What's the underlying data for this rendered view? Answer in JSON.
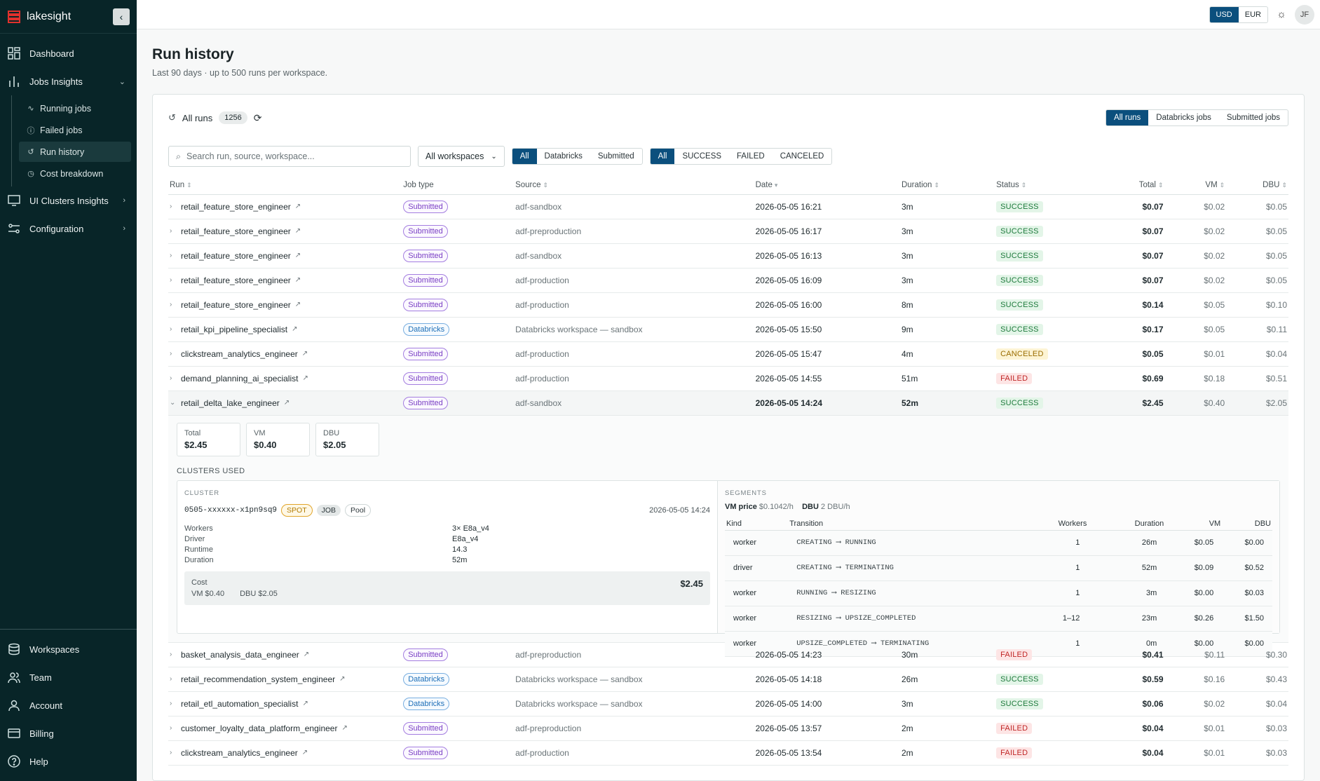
{
  "app": {
    "name": "lakesight",
    "collapse_icon": "chevron-left-icon"
  },
  "sidebar": {
    "items": [
      {
        "label": "Dashboard",
        "icon": "dashboard-icon"
      },
      {
        "label": "Jobs Insights",
        "icon": "bar-chart-icon",
        "expanded": true
      },
      {
        "label": "UI Clusters Insights",
        "icon": "monitor-icon"
      },
      {
        "label": "Configuration",
        "icon": "sliders-icon"
      }
    ],
    "sub_items": [
      {
        "label": "Running jobs",
        "icon": "activity-icon"
      },
      {
        "label": "Failed jobs",
        "icon": "alert-circle-icon"
      },
      {
        "label": "Run history",
        "icon": "history-icon",
        "active": true
      },
      {
        "label": "Cost breakdown",
        "icon": "clock-icon"
      }
    ],
    "bottom_items": [
      {
        "label": "Workspaces",
        "icon": "database-icon"
      },
      {
        "label": "Team",
        "icon": "users-icon"
      },
      {
        "label": "Account",
        "icon": "user-icon"
      },
      {
        "label": "Billing",
        "icon": "credit-card-icon"
      },
      {
        "label": "Help",
        "icon": "help-circle-icon"
      }
    ]
  },
  "topbar": {
    "currencies": [
      "USD",
      "EUR"
    ],
    "active_currency": "USD",
    "avatar_initials": "JF"
  },
  "page": {
    "title": "Run history",
    "subtitle": "Last 90 days · up to 500 runs per workspace."
  },
  "card": {
    "title": "All runs",
    "count": "1256",
    "view_tabs": [
      "All runs",
      "Databricks jobs",
      "Submitted jobs"
    ],
    "active_view": "All runs",
    "search_placeholder": "Search run, source, workspace...",
    "workspace_select": "All workspaces",
    "type_filter": [
      "All",
      "Databricks",
      "Submitted"
    ],
    "status_filter": [
      "All",
      "SUCCESS",
      "FAILED",
      "CANCELED"
    ]
  },
  "table": {
    "columns": [
      "Run",
      "Job type",
      "Source",
      "Date",
      "Duration",
      "Status",
      "Total",
      "VM",
      "DBU"
    ],
    "rows_before": [
      {
        "run": "retail_feature_store_engineer",
        "type": "Submitted",
        "source": "adf-sandbox",
        "date": "2026-05-05 16:21",
        "duration": "3m",
        "status": "SUCCESS",
        "total": "$0.07",
        "vm": "$0.02",
        "dbu": "$0.05"
      },
      {
        "run": "retail_feature_store_engineer",
        "type": "Submitted",
        "source": "adf-preproduction",
        "date": "2026-05-05 16:17",
        "duration": "3m",
        "status": "SUCCESS",
        "total": "$0.07",
        "vm": "$0.02",
        "dbu": "$0.05"
      },
      {
        "run": "retail_feature_store_engineer",
        "type": "Submitted",
        "source": "adf-sandbox",
        "date": "2026-05-05 16:13",
        "duration": "3m",
        "status": "SUCCESS",
        "total": "$0.07",
        "vm": "$0.02",
        "dbu": "$0.05"
      },
      {
        "run": "retail_feature_store_engineer",
        "type": "Submitted",
        "source": "adf-production",
        "date": "2026-05-05 16:09",
        "duration": "3m",
        "status": "SUCCESS",
        "total": "$0.07",
        "vm": "$0.02",
        "dbu": "$0.05"
      },
      {
        "run": "retail_feature_store_engineer",
        "type": "Submitted",
        "source": "adf-production",
        "date": "2026-05-05 16:00",
        "duration": "8m",
        "status": "SUCCESS",
        "total": "$0.14",
        "vm": "$0.05",
        "dbu": "$0.10"
      },
      {
        "run": "retail_kpi_pipeline_specialist",
        "type": "Databricks",
        "source": "Databricks workspace — sandbox",
        "date": "2026-05-05 15:50",
        "duration": "9m",
        "status": "SUCCESS",
        "total": "$0.17",
        "vm": "$0.05",
        "dbu": "$0.11"
      },
      {
        "run": "clickstream_analytics_engineer",
        "type": "Submitted",
        "source": "adf-production",
        "date": "2026-05-05 15:47",
        "duration": "4m",
        "status": "CANCELED",
        "total": "$0.05",
        "vm": "$0.01",
        "dbu": "$0.04"
      },
      {
        "run": "demand_planning_ai_specialist",
        "type": "Submitted",
        "source": "adf-production",
        "date": "2026-05-05 14:55",
        "duration": "51m",
        "status": "FAILED",
        "total": "$0.69",
        "vm": "$0.18",
        "dbu": "$0.51"
      }
    ],
    "expanded_row": {
      "run": "retail_delta_lake_engineer",
      "type": "Submitted",
      "source": "adf-sandbox",
      "date": "2026-05-05 14:24",
      "duration": "52m",
      "status": "SUCCESS",
      "total": "$2.45",
      "vm": "$0.40",
      "dbu": "$2.05"
    },
    "rows_after": [
      {
        "run": "basket_analysis_data_engineer",
        "type": "Submitted",
        "source": "adf-preproduction",
        "date": "2026-05-05 14:23",
        "duration": "30m",
        "status": "FAILED",
        "total": "$0.41",
        "vm": "$0.11",
        "dbu": "$0.30"
      },
      {
        "run": "retail_recommendation_system_engineer",
        "type": "Databricks",
        "source": "Databricks workspace — sandbox",
        "date": "2026-05-05 14:18",
        "duration": "26m",
        "status": "SUCCESS",
        "total": "$0.59",
        "vm": "$0.16",
        "dbu": "$0.43"
      },
      {
        "run": "retail_etl_automation_specialist",
        "type": "Databricks",
        "source": "Databricks workspace — sandbox",
        "date": "2026-05-05 14:00",
        "duration": "3m",
        "status": "SUCCESS",
        "total": "$0.06",
        "vm": "$0.02",
        "dbu": "$0.04"
      },
      {
        "run": "customer_loyalty_data_platform_engineer",
        "type": "Submitted",
        "source": "adf-preproduction",
        "date": "2026-05-05 13:57",
        "duration": "2m",
        "status": "FAILED",
        "total": "$0.04",
        "vm": "$0.01",
        "dbu": "$0.03"
      },
      {
        "run": "clickstream_analytics_engineer",
        "type": "Submitted",
        "source": "adf-production",
        "date": "2026-05-05 13:54",
        "duration": "2m",
        "status": "FAILED",
        "total": "$0.04",
        "vm": "$0.01",
        "dbu": "$0.03"
      }
    ]
  },
  "detail": {
    "stats": [
      {
        "label": "Total",
        "value": "$2.45"
      },
      {
        "label": "VM",
        "value": "$0.40"
      },
      {
        "label": "DBU",
        "value": "$2.05"
      }
    ],
    "clusters_title": "CLUSTERS USED",
    "cluster": {
      "section_label": "CLUSTER",
      "id": "0505-xxxxxx-x1pn9sq9",
      "chips": [
        "SPOT",
        "JOB",
        "Pool"
      ],
      "started": "2026-05-05 14:24",
      "fields": [
        {
          "k": "Workers",
          "v": "3× E8a_v4"
        },
        {
          "k": "Driver",
          "v": "E8a_v4"
        },
        {
          "k": "Runtime",
          "v": "14.3"
        },
        {
          "k": "Duration",
          "v": "52m"
        }
      ],
      "cost_label": "Cost",
      "cost_vm": "VM $0.40",
      "cost_dbu": "DBU $2.05",
      "cost_total": "$2.45"
    },
    "segments": {
      "section_label": "SEGMENTS",
      "vm_price_label": "VM price",
      "vm_price": "$0.1042/h",
      "dbu_label": "DBU",
      "dbu_rate": "2 DBU/h",
      "columns": [
        "Kind",
        "Transition",
        "Workers",
        "Duration",
        "VM",
        "DBU"
      ],
      "rows": [
        {
          "kind": "worker",
          "from": "CREATING",
          "to": "RUNNING",
          "workers": "1",
          "duration": "26m",
          "vm": "$0.05",
          "dbu": "$0.00"
        },
        {
          "kind": "driver",
          "from": "CREATING",
          "to": "TERMINATING",
          "workers": "1",
          "duration": "52m",
          "vm": "$0.09",
          "dbu": "$0.52"
        },
        {
          "kind": "worker",
          "from": "RUNNING",
          "to": "RESIZING",
          "workers": "1",
          "duration": "3m",
          "vm": "$0.00",
          "dbu": "$0.03"
        },
        {
          "kind": "worker",
          "from": "RESIZING",
          "to": "UPSIZE_COMPLETED",
          "workers": "1–12",
          "duration": "23m",
          "vm": "$0.26",
          "dbu": "$1.50"
        },
        {
          "kind": "worker",
          "from": "UPSIZE_COMPLETED",
          "to": "TERMINATING",
          "workers": "1",
          "duration": "0m",
          "vm": "$0.00",
          "dbu": "$0.00"
        }
      ]
    }
  }
}
